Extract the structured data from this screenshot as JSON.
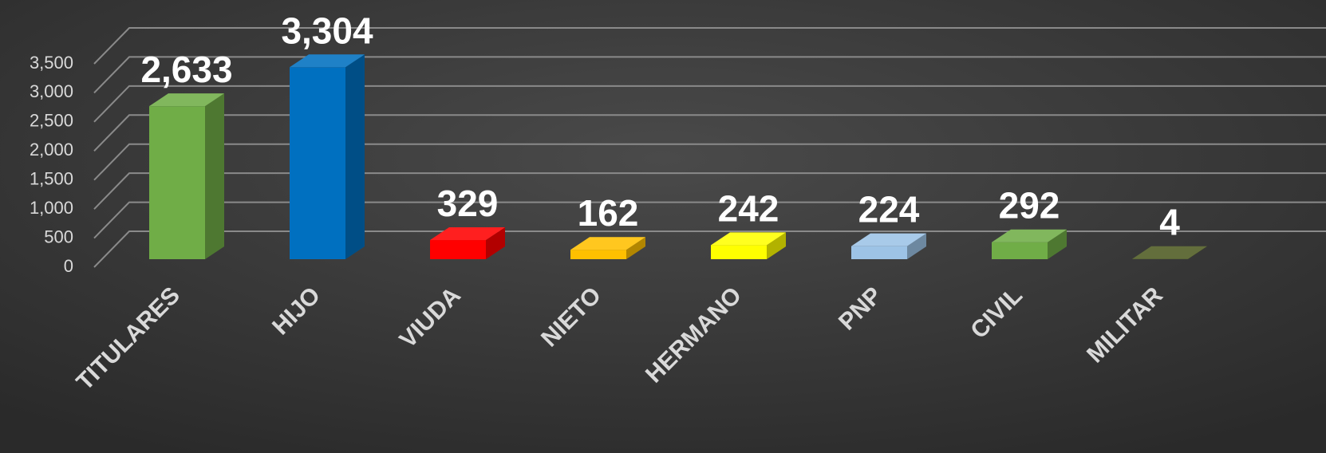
{
  "chart_data": {
    "type": "bar3d",
    "categories": [
      "TITULARES",
      "HIJO",
      "VIUDA",
      "NIETO",
      "HERMANO",
      "PNP",
      "CIVIL",
      "MILITAR"
    ],
    "values": [
      2633,
      3304,
      329,
      162,
      242,
      224,
      292,
      4
    ],
    "value_labels": [
      "2,633",
      "3,304",
      "329",
      "162",
      "242",
      "224",
      "292",
      "4"
    ],
    "colors": [
      "#70ad47",
      "#0070c0",
      "#ff0000",
      "#ffc000",
      "#ffff00",
      "#9dc3e6",
      "#70ad47",
      "#4e5a22"
    ],
    "ylim": [
      0,
      3500
    ],
    "yticks": [
      0,
      500,
      {
        "value": 1000,
        "label": "1,000"
      },
      {
        "value": 1500,
        "label": "1,500"
      },
      {
        "value": 2000,
        "label": "2,000"
      },
      {
        "value": 2500,
        "label": "2,500"
      },
      {
        "value": 3000,
        "label": "3,000"
      },
      {
        "value": 3500,
        "label": "3,500"
      }
    ],
    "grid": true
  }
}
